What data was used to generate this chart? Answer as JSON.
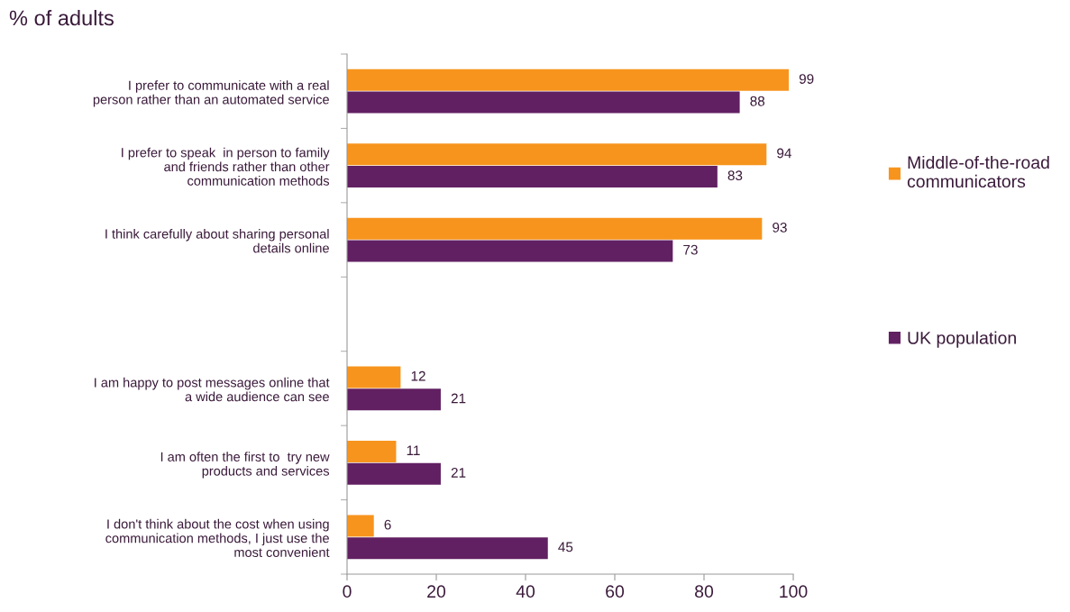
{
  "chart_data": {
    "type": "bar",
    "orientation": "horizontal",
    "title": "% of adults",
    "categories": [
      "I prefer to communicate with a real person rather than an automated service",
      "I prefer to speak  in person to family and friends rather than other communication methods",
      "I think carefully about sharing personal details online",
      null,
      "I am happy to post messages online that a wide audience can see",
      "I am often the first to  try new products and services",
      "I don't think about the cost when using communication methods, I just use the most convenient"
    ],
    "series": [
      {
        "name": "Middle-of-the-road communicators",
        "color": "#f7941d",
        "values": [
          99,
          94,
          93,
          null,
          12,
          11,
          6
        ]
      },
      {
        "name": "UK population",
        "color": "#612062",
        "values": [
          88,
          83,
          73,
          null,
          21,
          21,
          45
        ]
      }
    ],
    "xlim": [
      0,
      100
    ],
    "xticks": [
      0,
      20,
      40,
      60,
      80,
      100
    ],
    "data_labels": true,
    "grid": false,
    "legend": "right"
  }
}
